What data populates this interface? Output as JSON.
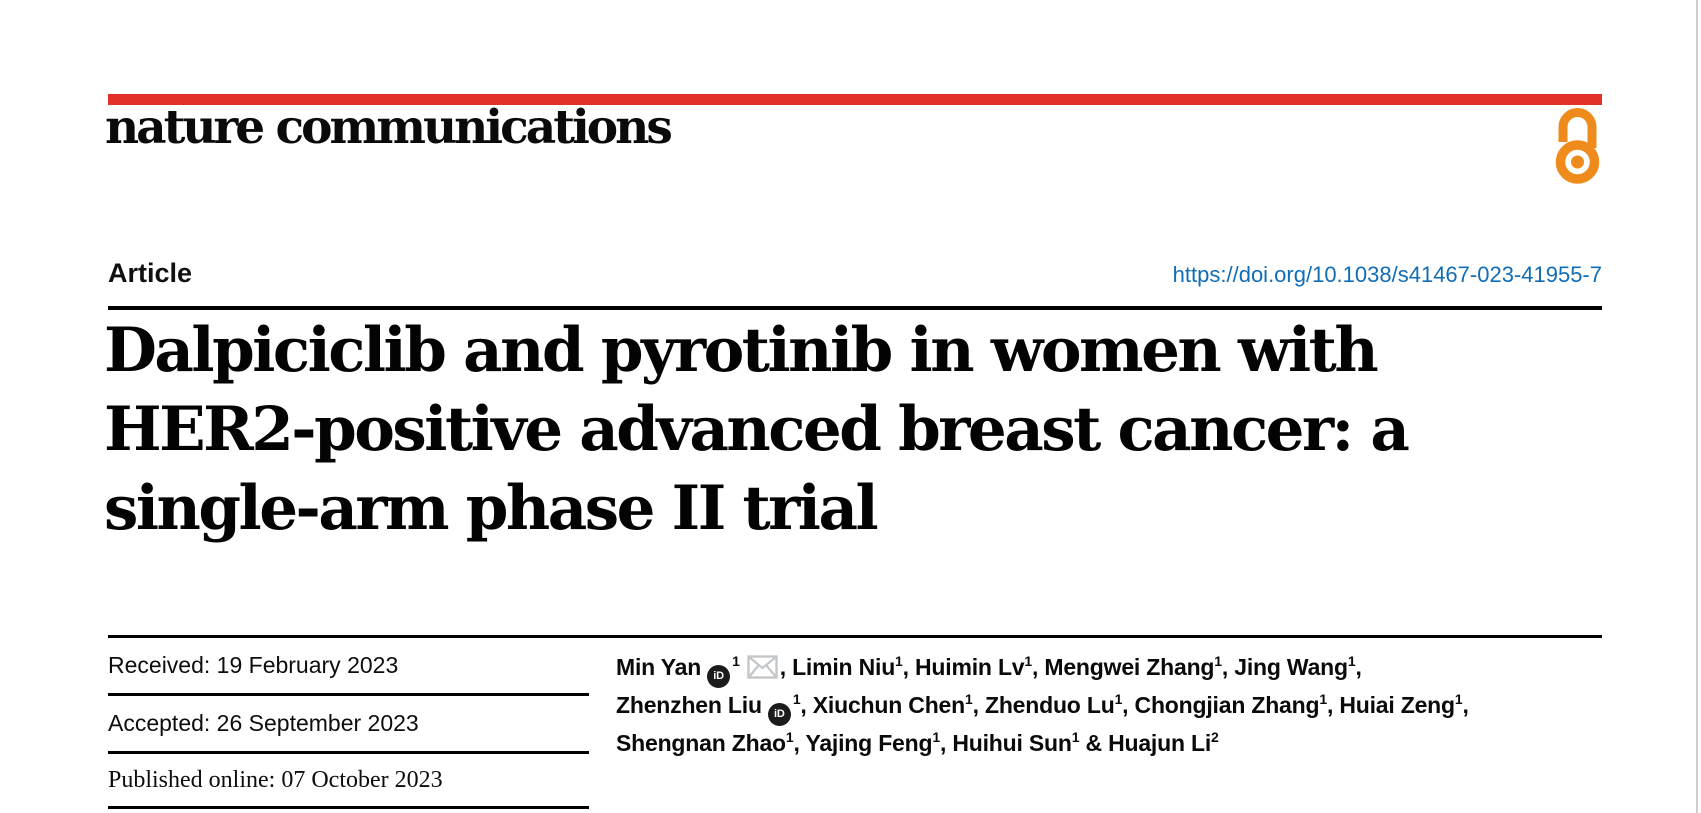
{
  "brand": {
    "journal_name": "nature communications",
    "accent_red": "#e23127",
    "open_access_orange": "#ef8b1d"
  },
  "header": {
    "article_type": "Article",
    "doi_url": "https://doi.org/10.1038/s41467-023-41955-7",
    "doi_color": "#116db5"
  },
  "title": {
    "full": "Dalpiciclib and pyrotinib in women with HER2-positive advanced breast cancer: a single-arm phase II trial",
    "lines": [
      "Dalpiciclib and pyrotinib in women with",
      "HER2-positive advanced breast cancer: a",
      "single-arm phase II trial"
    ]
  },
  "history": {
    "received": "Received: 19 February 2023",
    "accepted": "Accepted: 26 September 2023",
    "published": "Published online: 07 October 2023"
  },
  "authors": {
    "orcid_icon_text": "iD",
    "lines": [
      [
        {
          "t": "Min Yan"
        },
        {
          "i": "orcid"
        },
        {
          "s": "1"
        },
        {
          "i": "envelope"
        },
        {
          "t": ", Limin Niu"
        },
        {
          "s": "1"
        },
        {
          "t": ", Huimin Lv"
        },
        {
          "s": "1"
        },
        {
          "t": ", Mengwei Zhang"
        },
        {
          "s": "1"
        },
        {
          "t": ", Jing Wang"
        },
        {
          "s": "1"
        },
        {
          "t": ","
        }
      ],
      [
        {
          "t": "Zhenzhen Liu"
        },
        {
          "i": "orcid"
        },
        {
          "s": "1"
        },
        {
          "t": ", Xiuchun Chen"
        },
        {
          "s": "1"
        },
        {
          "t": ", Zhenduo Lu"
        },
        {
          "s": "1"
        },
        {
          "t": ", Chongjian Zhang"
        },
        {
          "s": "1"
        },
        {
          "t": ", Huiai Zeng"
        },
        {
          "s": "1"
        },
        {
          "t": ","
        }
      ],
      [
        {
          "t": "Shengnan Zhao"
        },
        {
          "s": "1"
        },
        {
          "t": ", Yajing Feng"
        },
        {
          "s": "1"
        },
        {
          "t": ", Huihui Sun"
        },
        {
          "s": "1"
        },
        {
          "t": " & Huajun Li"
        },
        {
          "s": "2"
        }
      ]
    ]
  }
}
